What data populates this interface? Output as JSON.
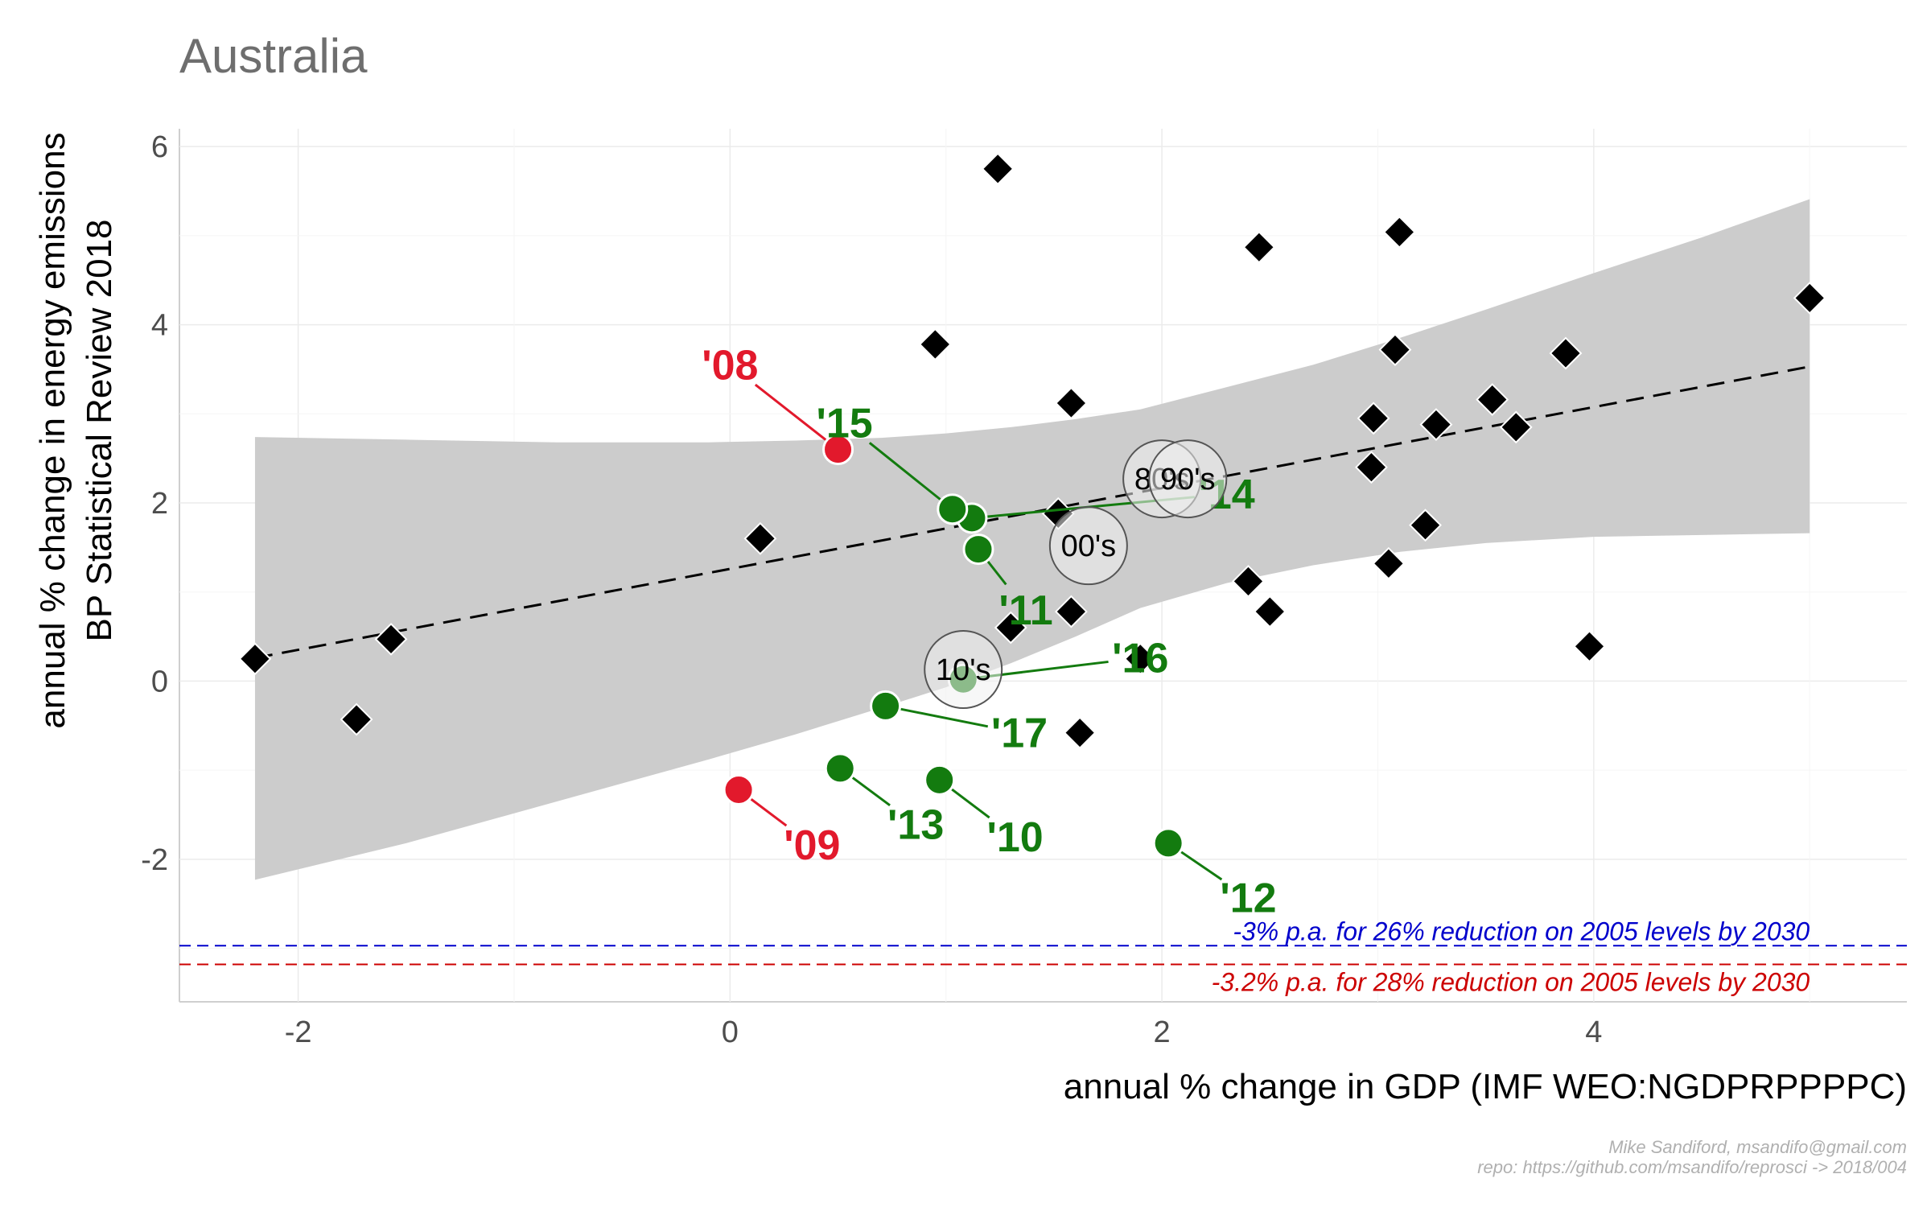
{
  "chart_data": {
    "type": "scatter",
    "title": "Australia",
    "xlabel": "annual % change in GDP (IMF WEO:NGDPRPPPPC)",
    "ylabel_lines": [
      "annual % change in energy emissions",
      "BP Statistical Review 2018"
    ],
    "xlim": [
      -2.55,
      5.45
    ],
    "ylim": [
      -3.6,
      6.2
    ],
    "xticks": [
      -2,
      0,
      2,
      4
    ],
    "yticks": [
      -2,
      0,
      2,
      4,
      6
    ],
    "grid": true,
    "colors": {
      "diamond": "#000000",
      "green": "#137b0f",
      "red": "#e2192c",
      "ribbon": "#cccccc",
      "blue_target": "#0000cc",
      "red_target": "#cc0000"
    },
    "historical_points": [
      [
        -2.2,
        0.25
      ],
      [
        -1.73,
        -0.43
      ],
      [
        -1.57,
        0.47
      ],
      [
        0.14,
        1.6
      ],
      [
        0.95,
        3.78
      ],
      [
        1.24,
        5.75
      ],
      [
        1.3,
        0.6
      ],
      [
        1.52,
        1.88
      ],
      [
        1.58,
        3.12
      ],
      [
        1.58,
        0.78
      ],
      [
        1.62,
        -0.58
      ],
      [
        1.9,
        0.25
      ],
      [
        2.4,
        1.12
      ],
      [
        2.45,
        4.87
      ],
      [
        2.5,
        0.78
      ],
      [
        2.97,
        2.4
      ],
      [
        2.98,
        2.95
      ],
      [
        3.05,
        1.32
      ],
      [
        3.08,
        3.72
      ],
      [
        3.1,
        5.04
      ],
      [
        3.22,
        1.75
      ],
      [
        3.27,
        2.88
      ],
      [
        3.53,
        3.16
      ],
      [
        3.64,
        2.85
      ],
      [
        3.87,
        3.68
      ],
      [
        3.98,
        0.39
      ],
      [
        5.0,
        4.3
      ]
    ],
    "trend": {
      "x": [
        -2.2,
        5.0
      ],
      "y": [
        0.26,
        3.53
      ]
    },
    "confidence_band": {
      "x": [
        -2.2,
        -1.5,
        -0.8,
        -0.1,
        0.3,
        0.7,
        1.0,
        1.3,
        1.6,
        1.9,
        2.3,
        2.7,
        3.1,
        3.5,
        4.0,
        4.5,
        5.0
      ],
      "upper": [
        2.74,
        2.71,
        2.68,
        2.68,
        2.7,
        2.73,
        2.78,
        2.85,
        2.94,
        3.05,
        3.3,
        3.55,
        3.85,
        4.17,
        4.58,
        4.98,
        5.41
      ],
      "lower": [
        -2.23,
        -1.82,
        -1.35,
        -0.88,
        -0.6,
        -0.3,
        -0.07,
        0.2,
        0.5,
        0.82,
        1.1,
        1.3,
        1.45,
        1.55,
        1.62,
        1.64,
        1.66
      ]
    },
    "labeled_years": [
      {
        "label": "'08",
        "x": 0.5,
        "y": 2.6,
        "lx": 0.0,
        "ly": 3.55,
        "color": "red"
      },
      {
        "label": "'09",
        "x": 0.04,
        "y": -1.22,
        "lx": 0.38,
        "ly": -1.84,
        "color": "red"
      },
      {
        "label": "'10",
        "x": 0.97,
        "y": -1.11,
        "lx": 1.32,
        "ly": -1.75,
        "color": "green"
      },
      {
        "label": "'11",
        "x": 1.15,
        "y": 1.48,
        "lx": 1.37,
        "ly": 0.8,
        "color": "green"
      },
      {
        "label": "'12",
        "x": 2.03,
        "y": -1.82,
        "lx": 2.4,
        "ly": -2.43,
        "color": "green"
      },
      {
        "label": "'13",
        "x": 0.51,
        "y": -0.98,
        "lx": 0.86,
        "ly": -1.61,
        "color": "green"
      },
      {
        "label": "'14",
        "x": 1.12,
        "y": 1.83,
        "lx": 2.3,
        "ly": 2.1,
        "color": "green"
      },
      {
        "label": "'15",
        "x": 1.03,
        "y": 1.93,
        "lx": 0.53,
        "ly": 2.9,
        "color": "green"
      },
      {
        "label": "'16",
        "x": 1.08,
        "y": 0.02,
        "lx": 1.9,
        "ly": 0.26,
        "color": "green"
      },
      {
        "label": "'17",
        "x": 0.72,
        "y": -0.28,
        "lx": 1.34,
        "ly": -0.58,
        "color": "green"
      }
    ],
    "decade_means": [
      {
        "label": "80's",
        "x": 2.0,
        "y": 2.27
      },
      {
        "label": "90's",
        "x": 2.12,
        "y": 2.27
      },
      {
        "label": "00's",
        "x": 1.66,
        "y": 1.52
      },
      {
        "label": "10's",
        "x": 1.08,
        "y": 0.13
      }
    ],
    "targets": [
      {
        "y": -2.97,
        "color": "blue_target",
        "label": "-3% p.a. for 26% reduction on 2005 levels by 2030"
      },
      {
        "y": -3.18,
        "color": "red_target",
        "label": "-3.2% p.a. for 28% reduction on 2005 levels by 2030"
      }
    ]
  },
  "credits": {
    "line1": "Mike Sandiford, msandifo@gmail.com",
    "line2": "repo: https://github.com/msandifo/reprosci -> 2018/004"
  }
}
